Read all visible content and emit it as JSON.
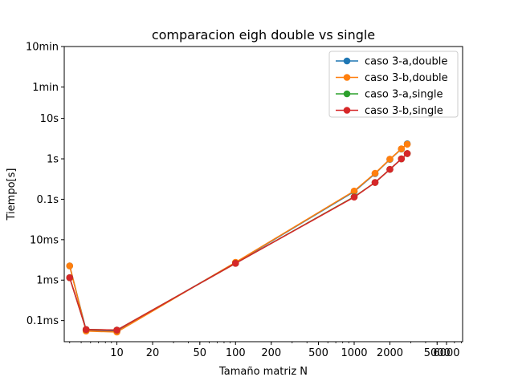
{
  "chart_data": {
    "type": "line",
    "title": "comparacion eigh double vs single",
    "xlabel": "Tamaño matriz N",
    "ylabel": "Tiempo[s]",
    "x_scale": "log",
    "y_scale": "log",
    "xlim": [
      3.6,
      8200
    ],
    "ylim": [
      3e-05,
      600
    ],
    "x_ticks": [
      {
        "value": 10,
        "label": "10"
      },
      {
        "value": 20,
        "label": "20"
      },
      {
        "value": 50,
        "label": "50"
      },
      {
        "value": 100,
        "label": "100"
      },
      {
        "value": 200,
        "label": "200"
      },
      {
        "value": 500,
        "label": "500"
      },
      {
        "value": 1000,
        "label": "1000"
      },
      {
        "value": 2000,
        "label": "2000"
      },
      {
        "value": 5000,
        "label": "5000"
      },
      {
        "value": 6000,
        "label": "6000"
      }
    ],
    "y_ticks": [
      {
        "value": 0.0001,
        "label": "0.1ms"
      },
      {
        "value": 0.001,
        "label": "1ms"
      },
      {
        "value": 0.01,
        "label": "10ms"
      },
      {
        "value": 0.1,
        "label": "0.1s"
      },
      {
        "value": 1,
        "label": "1s"
      },
      {
        "value": 10,
        "label": "10s"
      },
      {
        "value": 60,
        "label": "1min"
      },
      {
        "value": 600,
        "label": "10min"
      }
    ],
    "grid": false,
    "legend_position": "top-right",
    "series": [
      {
        "name": "caso 3-a,double",
        "color": "#1f77b4",
        "x": [
          4,
          5.5,
          10,
          100,
          1000,
          1500,
          2000,
          2500,
          2800
        ],
        "y": [
          0.00225,
          5.8e-05,
          5.5e-05,
          0.0027,
          0.155,
          0.43,
          0.97,
          1.75,
          2.35
        ]
      },
      {
        "name": "caso 3-b,double",
        "color": "#ff7f0e",
        "x": [
          4,
          5.5,
          10,
          100,
          1000,
          1500,
          2000,
          2500,
          2800
        ],
        "y": [
          0.00225,
          5.5e-05,
          5.2e-05,
          0.00275,
          0.16,
          0.44,
          0.98,
          1.77,
          2.3
        ]
      },
      {
        "name": "caso 3-a,single",
        "color": "#2ca02c",
        "x": [
          4,
          5.5,
          10,
          100,
          1000,
          1500,
          2000,
          2500,
          2800
        ],
        "y": [
          0.00115,
          6e-05,
          5.8e-05,
          0.0026,
          0.115,
          0.26,
          0.55,
          1.0,
          1.35
        ]
      },
      {
        "name": "caso 3-b,single",
        "color": "#d62728",
        "x": [
          4,
          5.5,
          10,
          100,
          1000,
          1500,
          2000,
          2500,
          2800
        ],
        "y": [
          0.00115,
          6e-05,
          5.8e-05,
          0.0026,
          0.113,
          0.26,
          0.55,
          1.0,
          1.35
        ]
      }
    ]
  }
}
